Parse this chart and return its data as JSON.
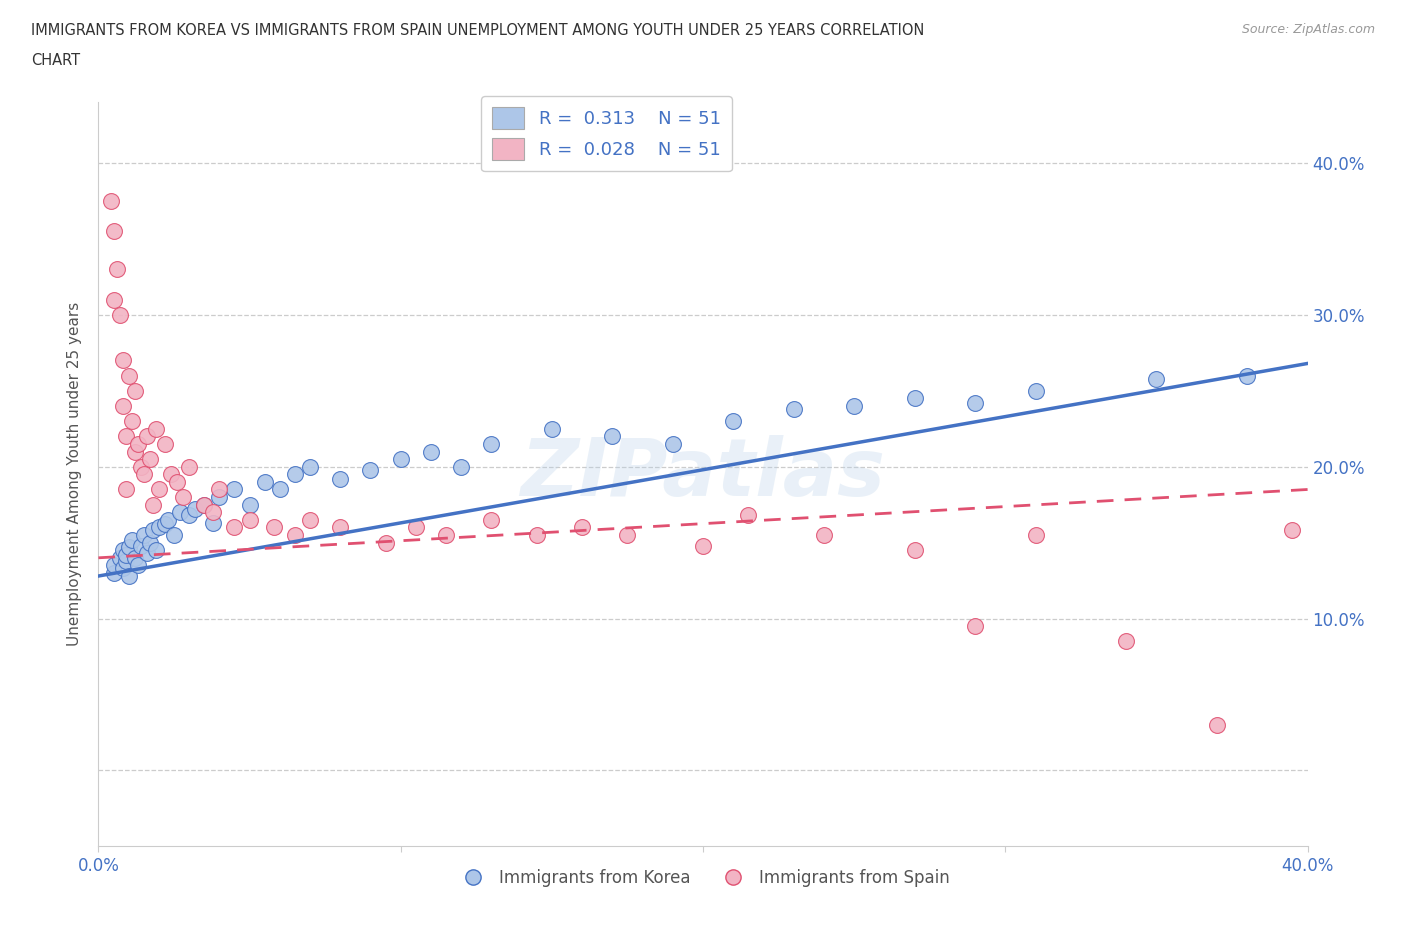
{
  "title_line1": "IMMIGRANTS FROM KOREA VS IMMIGRANTS FROM SPAIN UNEMPLOYMENT AMONG YOUTH UNDER 25 YEARS CORRELATION",
  "title_line2": "CHART",
  "source_text": "Source: ZipAtlas.com",
  "ylabel": "Unemployment Among Youth under 25 years",
  "xlim": [
    0.0,
    0.4
  ],
  "ylim": [
    -0.05,
    0.44
  ],
  "yticks": [
    0.0,
    0.1,
    0.2,
    0.3,
    0.4
  ],
  "ytick_labels": [
    "",
    "10.0%",
    "20.0%",
    "30.0%",
    "40.0%"
  ],
  "korea_color": "#adc6e8",
  "spain_color": "#f2b4c4",
  "korea_line_color": "#4472c4",
  "spain_line_color": "#e05070",
  "watermark": "ZIPatlas",
  "korea_x": [
    0.005,
    0.005,
    0.007,
    0.008,
    0.008,
    0.009,
    0.009,
    0.01,
    0.01,
    0.011,
    0.012,
    0.013,
    0.014,
    0.015,
    0.016,
    0.017,
    0.018,
    0.019,
    0.02,
    0.022,
    0.023,
    0.025,
    0.027,
    0.03,
    0.032,
    0.035,
    0.038,
    0.04,
    0.045,
    0.05,
    0.055,
    0.06,
    0.065,
    0.07,
    0.08,
    0.09,
    0.1,
    0.11,
    0.12,
    0.13,
    0.15,
    0.17,
    0.19,
    0.21,
    0.23,
    0.25,
    0.27,
    0.29,
    0.31,
    0.35,
    0.38
  ],
  "korea_y": [
    0.13,
    0.135,
    0.14,
    0.145,
    0.133,
    0.138,
    0.142,
    0.147,
    0.128,
    0.152,
    0.14,
    0.135,
    0.148,
    0.155,
    0.143,
    0.15,
    0.158,
    0.145,
    0.16,
    0.162,
    0.165,
    0.155,
    0.17,
    0.168,
    0.172,
    0.175,
    0.163,
    0.18,
    0.185,
    0.175,
    0.19,
    0.185,
    0.195,
    0.2,
    0.192,
    0.198,
    0.205,
    0.21,
    0.2,
    0.215,
    0.225,
    0.22,
    0.215,
    0.23,
    0.238,
    0.24,
    0.245,
    0.242,
    0.25,
    0.258,
    0.26
  ],
  "spain_x": [
    0.004,
    0.005,
    0.005,
    0.006,
    0.007,
    0.008,
    0.008,
    0.009,
    0.009,
    0.01,
    0.011,
    0.012,
    0.012,
    0.013,
    0.014,
    0.015,
    0.016,
    0.017,
    0.018,
    0.019,
    0.02,
    0.022,
    0.024,
    0.026,
    0.028,
    0.03,
    0.035,
    0.038,
    0.04,
    0.045,
    0.05,
    0.058,
    0.065,
    0.07,
    0.08,
    0.095,
    0.105,
    0.115,
    0.13,
    0.145,
    0.16,
    0.175,
    0.2,
    0.215,
    0.24,
    0.27,
    0.29,
    0.31,
    0.34,
    0.37,
    0.395
  ],
  "spain_y": [
    0.375,
    0.355,
    0.31,
    0.33,
    0.3,
    0.27,
    0.24,
    0.22,
    0.185,
    0.26,
    0.23,
    0.25,
    0.21,
    0.215,
    0.2,
    0.195,
    0.22,
    0.205,
    0.175,
    0.225,
    0.185,
    0.215,
    0.195,
    0.19,
    0.18,
    0.2,
    0.175,
    0.17,
    0.185,
    0.16,
    0.165,
    0.16,
    0.155,
    0.165,
    0.16,
    0.15,
    0.16,
    0.155,
    0.165,
    0.155,
    0.16,
    0.155,
    0.148,
    0.168,
    0.155,
    0.145,
    0.095,
    0.155,
    0.085,
    0.03,
    0.158
  ],
  "background_color": "#ffffff",
  "grid_color": "#cccccc"
}
